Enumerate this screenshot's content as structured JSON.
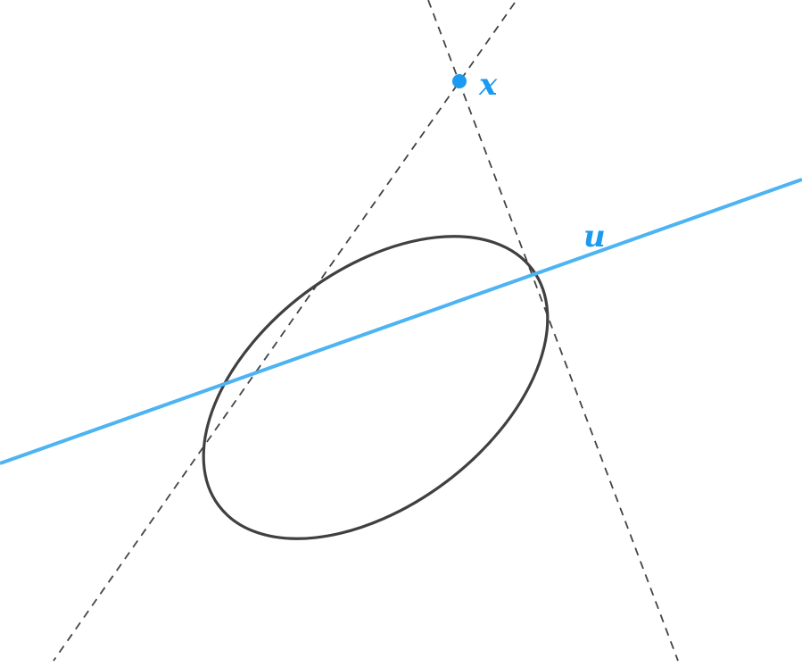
{
  "diagram": {
    "labels": {
      "point": "x",
      "line": "u"
    },
    "colors": {
      "accent": "#4db3f2",
      "point": "#1a9af0",
      "ellipse": "#404040",
      "tangent": "#444444",
      "background": "#ffffff"
    }
  }
}
